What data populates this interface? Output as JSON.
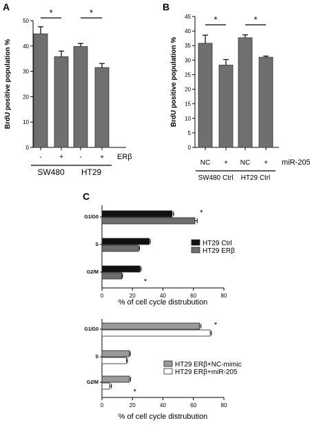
{
  "chart_data": [
    {
      "panel": "A",
      "type": "bar",
      "ylabel": "BrdU positive population %",
      "ylim": [
        0,
        50
      ],
      "yticks": [
        0,
        10,
        20,
        30,
        40,
        50
      ],
      "treatment_label": "ERβ",
      "treatment_marks": [
        "-",
        "+",
        "-",
        "+"
      ],
      "groups": [
        "SW480",
        "HT29"
      ],
      "values": [
        44.8,
        35.8,
        39.8,
        31.5
      ],
      "errors": [
        2.8,
        2.2,
        1.2,
        1.6
      ],
      "significance": [
        "*",
        "*"
      ],
      "color": "#6f6f6f"
    },
    {
      "panel": "B",
      "type": "bar",
      "ylabel": "BrdU positive population %",
      "ylim": [
        0,
        45
      ],
      "yticks": [
        0,
        5,
        10,
        15,
        20,
        25,
        30,
        35,
        40,
        45
      ],
      "treatment_label": "miR-205",
      "treatment_marks": [
        "NC",
        "+",
        "NC",
        "+"
      ],
      "groups": [
        "SW480 Ctrl",
        "HT29 Ctrl"
      ],
      "values": [
        35.8,
        28.3,
        37.7,
        31.0
      ],
      "errors": [
        2.8,
        1.9,
        1.0,
        0.4
      ],
      "significance": [
        "*",
        "*"
      ],
      "color": "#6f6f6f"
    },
    {
      "panel": "C",
      "type": "bar",
      "orientation": "horizontal",
      "xlabel": "% of cell cycle distrubution",
      "xlim": [
        0,
        80
      ],
      "xticks": [
        0,
        20,
        40,
        60,
        80
      ],
      "categories": [
        "G1/G0",
        "S",
        "G2/M"
      ],
      "series": [
        {
          "name": "HT29 Ctrl",
          "values": [
            46,
            31,
            25
          ],
          "errors": [
            1,
            0.7,
            0.7
          ],
          "color": "#111111"
        },
        {
          "name": "HT29 ERβ",
          "values": [
            61,
            24,
            13
          ],
          "errors": [
            1.5,
            0.6,
            0.5
          ],
          "color": "#6f6f6f"
        }
      ],
      "significance": [
        "*",
        "",
        "*"
      ],
      "legend": "right"
    },
    {
      "type": "bar",
      "orientation": "horizontal",
      "xlabel": "% of cell cycle distrubution",
      "xlim": [
        0,
        80
      ],
      "xticks": [
        0,
        20,
        40,
        60,
        80
      ],
      "categories": [
        "G1/G0",
        "S",
        "G2/M"
      ],
      "series": [
        {
          "name": "HT29 ERβ+NC-mimic",
          "values": [
            64,
            18,
            18
          ],
          "errors": [
            1,
            0.6,
            0.8
          ],
          "color": "#9a9a9a"
        },
        {
          "name": "HT29 ERβ+miR-205",
          "values": [
            71,
            16,
            5
          ],
          "errors": [
            0.8,
            0.7,
            1.2
          ],
          "color": "#ffffff"
        }
      ],
      "significance": [
        "*",
        "",
        "*"
      ],
      "legend": "right"
    }
  ]
}
